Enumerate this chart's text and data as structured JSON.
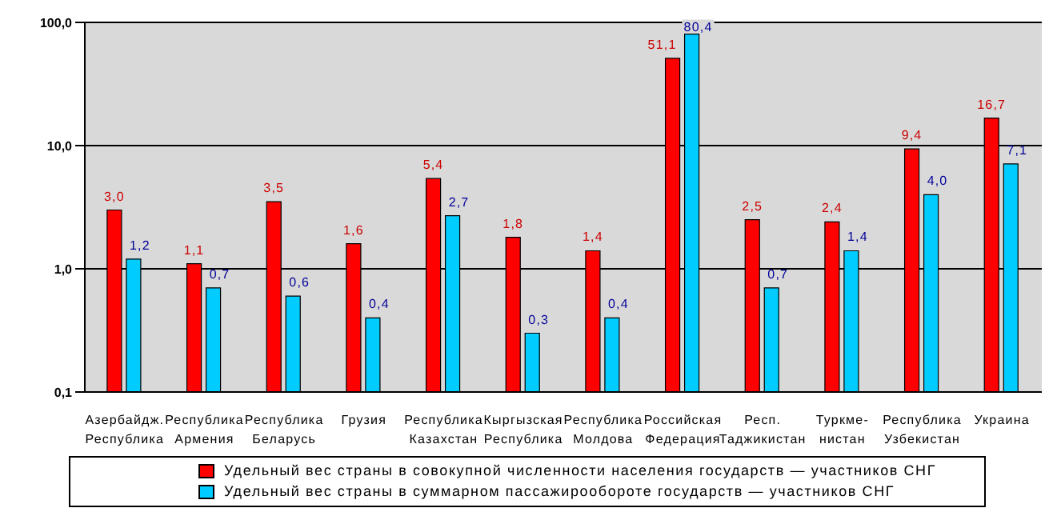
{
  "chart_data": {
    "type": "bar",
    "categories": [
      "Азербайдж.\nРеспублика",
      "Республика\nАрмения",
      "Республика\nБеларусь",
      "Грузия",
      "Республика\nКазахстан",
      "Кыргызская\nРеспублика",
      "Республика\nМолдова",
      "Российская\nФедерация",
      "Респ.\nТаджикистан",
      "Туркме-\nнистан",
      "Республика\nУзбекистан",
      "Украина"
    ],
    "series": [
      {
        "name": "Удельный вес страны в совокупной численности населения государств — участников СНГ",
        "color": "#ff0000",
        "values": [
          3.0,
          1.1,
          3.5,
          1.6,
          5.4,
          1.8,
          1.4,
          51.1,
          2.5,
          2.4,
          9.4,
          16.7
        ],
        "value_labels": [
          "3,0",
          "1,1",
          "3,5",
          "1,6",
          "5,4",
          "1,8",
          "1,4",
          "51,1",
          "2,5",
          "2,4",
          "9,4",
          "16,7"
        ]
      },
      {
        "name": "Удельный вес страны в суммарном пассажирообороте государств — участников СНГ",
        "color": "#00ccff",
        "values": [
          1.2,
          0.7,
          0.6,
          0.4,
          2.7,
          0.3,
          0.4,
          80.4,
          0.7,
          1.4,
          4.0,
          7.1
        ],
        "value_labels": [
          "1,2",
          "0,7",
          "0,6",
          "0,4",
          "2,7",
          "0,3",
          "0,4",
          "80,4",
          "0,7",
          "1,4",
          "4,0",
          "7,1"
        ]
      }
    ],
    "log": "y",
    "ylim": [
      0.1,
      100
    ],
    "yticks": [
      {
        "value": 0.1,
        "label": "0,1"
      },
      {
        "value": 1,
        "label": "1,0"
      },
      {
        "value": 10,
        "label": "10,0"
      },
      {
        "value": 100,
        "label": "100,0"
      }
    ],
    "grid": "y",
    "legend": "bottom"
  }
}
